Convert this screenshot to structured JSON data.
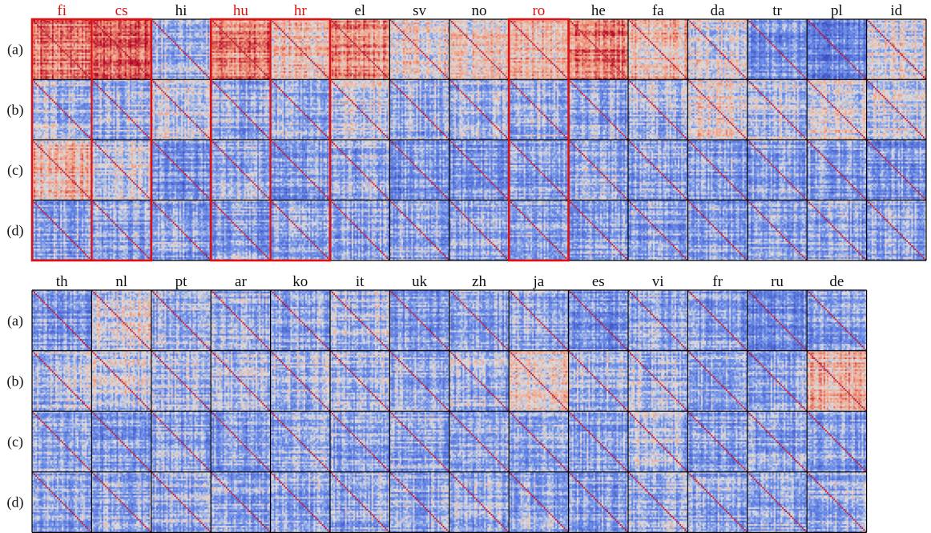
{
  "row_labels": [
    "(a)",
    "(b)",
    "(c)",
    "(d)"
  ],
  "highlight_color": "#dd1111",
  "label_color": "#111111",
  "colormap": {
    "low": "#3b4cc0",
    "mid": "#dddddd",
    "high": "#b40426"
  },
  "panels": [
    {
      "languages": [
        {
          "code": "fi",
          "highlighted": true,
          "warmth": [
            0.78,
            0.42,
            0.62,
            0.36
          ]
        },
        {
          "code": "cs",
          "highlighted": true,
          "warmth": [
            0.86,
            0.4,
            0.46,
            0.33
          ]
        },
        {
          "code": "hi",
          "highlighted": false,
          "warmth": [
            0.4,
            0.46,
            0.28,
            0.34
          ]
        },
        {
          "code": "hu",
          "highlighted": true,
          "warmth": [
            0.78,
            0.36,
            0.38,
            0.32
          ]
        },
        {
          "code": "hr",
          "highlighted": true,
          "warmth": [
            0.6,
            0.38,
            0.36,
            0.32
          ]
        },
        {
          "code": "el",
          "highlighted": false,
          "warmth": [
            0.74,
            0.5,
            0.38,
            0.34
          ]
        },
        {
          "code": "sv",
          "highlighted": false,
          "warmth": [
            0.58,
            0.38,
            0.3,
            0.34
          ]
        },
        {
          "code": "no",
          "highlighted": false,
          "warmth": [
            0.56,
            0.4,
            0.32,
            0.34
          ]
        },
        {
          "code": "ro",
          "highlighted": true,
          "warmth": [
            0.62,
            0.4,
            0.34,
            0.34
          ]
        },
        {
          "code": "he",
          "highlighted": false,
          "warmth": [
            0.8,
            0.36,
            0.36,
            0.34
          ]
        },
        {
          "code": "fa",
          "highlighted": false,
          "warmth": [
            0.62,
            0.4,
            0.36,
            0.34
          ]
        },
        {
          "code": "da",
          "highlighted": false,
          "warmth": [
            0.48,
            0.52,
            0.34,
            0.34
          ]
        },
        {
          "code": "tr",
          "highlighted": false,
          "warmth": [
            0.3,
            0.42,
            0.34,
            0.34
          ]
        },
        {
          "code": "pl",
          "highlighted": false,
          "warmth": [
            0.24,
            0.48,
            0.32,
            0.36
          ]
        },
        {
          "code": "id",
          "highlighted": false,
          "warmth": [
            0.52,
            0.46,
            0.3,
            0.36
          ]
        }
      ]
    },
    {
      "languages": [
        {
          "code": "th",
          "highlighted": false,
          "warmth": [
            0.32,
            0.42,
            0.36,
            0.36
          ]
        },
        {
          "code": "nl",
          "highlighted": false,
          "warmth": [
            0.5,
            0.46,
            0.3,
            0.36
          ]
        },
        {
          "code": "pt",
          "highlighted": false,
          "warmth": [
            0.4,
            0.4,
            0.34,
            0.36
          ]
        },
        {
          "code": "ar",
          "highlighted": false,
          "warmth": [
            0.38,
            0.42,
            0.34,
            0.36
          ]
        },
        {
          "code": "ko",
          "highlighted": false,
          "warmth": [
            0.36,
            0.42,
            0.34,
            0.36
          ]
        },
        {
          "code": "it",
          "highlighted": false,
          "warmth": [
            0.42,
            0.4,
            0.34,
            0.36
          ]
        },
        {
          "code": "uk",
          "highlighted": false,
          "warmth": [
            0.3,
            0.4,
            0.36,
            0.36
          ]
        },
        {
          "code": "zh",
          "highlighted": false,
          "warmth": [
            0.34,
            0.4,
            0.34,
            0.36
          ]
        },
        {
          "code": "ja",
          "highlighted": false,
          "warmth": [
            0.36,
            0.54,
            0.34,
            0.36
          ]
        },
        {
          "code": "es",
          "highlighted": false,
          "warmth": [
            0.26,
            0.4,
            0.34,
            0.36
          ]
        },
        {
          "code": "vi",
          "highlighted": false,
          "warmth": [
            0.34,
            0.4,
            0.42,
            0.36
          ]
        },
        {
          "code": "fr",
          "highlighted": false,
          "warmth": [
            0.34,
            0.38,
            0.32,
            0.36
          ]
        },
        {
          "code": "ru",
          "highlighted": false,
          "warmth": [
            0.26,
            0.36,
            0.32,
            0.36
          ]
        },
        {
          "code": "de",
          "highlighted": false,
          "warmth": [
            0.32,
            0.64,
            0.34,
            0.36
          ]
        }
      ]
    }
  ]
}
